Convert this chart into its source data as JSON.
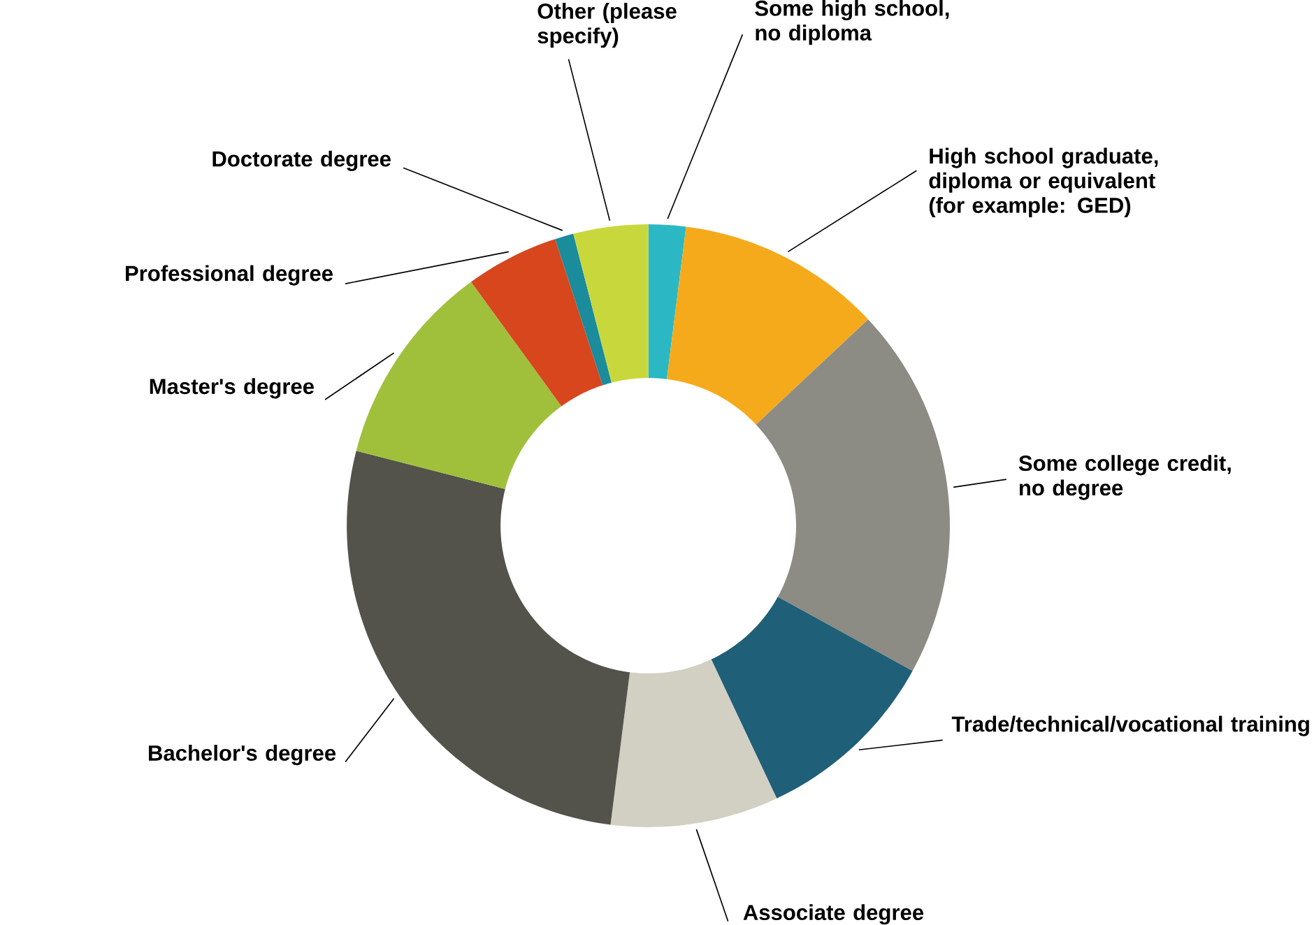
{
  "chart_data": {
    "type": "donut",
    "categories": [
      "Some high school, no diploma",
      "High school graduate, diploma or equivalent (for example: GED)",
      "Some college credit, no degree",
      "Trade/technical/vocational training",
      "Associate degree",
      "Bachelor's degree",
      "Master's degree",
      "Professional degree",
      "Doctorate degree",
      "Other (please specify)"
    ],
    "values": [
      2,
      11,
      20,
      10,
      9,
      27,
      11,
      5,
      1,
      4
    ],
    "colors": [
      "#2bb8c4",
      "#f5aa1c",
      "#8c8c84",
      "#1f5f78",
      "#d2cfc3",
      "#53534b",
      "#a0c03c",
      "#d8461e",
      "#1a8c9c",
      "#c8d83c"
    ]
  }
}
